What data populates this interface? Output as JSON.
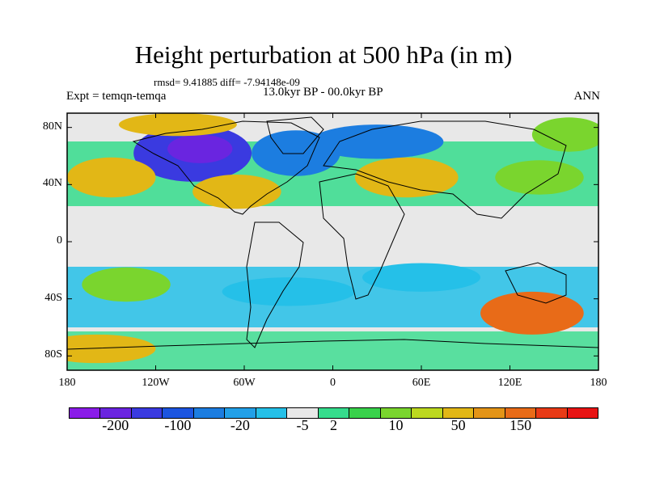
{
  "title": "Height perturbation at 500 hPa (in m)",
  "stats": "rmsd= 9.41885 diff= -7.94148e-09",
  "left_label": "Expt = temqn-temqa",
  "center_label": "13.0kyr BP - 00.0kyr BP",
  "right_label": "ANN",
  "lat_ticks": [
    "80N",
    "40N",
    "0",
    "40S",
    "80S"
  ],
  "lat_values": [
    80,
    40,
    0,
    -40,
    -80
  ],
  "lon_ticks": [
    "180",
    "120W",
    "60W",
    "0",
    "60E",
    "120E",
    "180"
  ],
  "lon_values": [
    -180,
    -120,
    -60,
    0,
    60,
    120,
    180
  ],
  "colorbar": {
    "labels": [
      "-200",
      "-100",
      "-20",
      "-5",
      "2",
      "10",
      "50",
      "150"
    ],
    "colors": [
      "#8a1ce8",
      "#6a25e0",
      "#3a3ae0",
      "#1c55e0",
      "#1c7de0",
      "#22a0e8",
      "#25c0e8",
      "#e8e8e8",
      "#35dc8c",
      "#39d24b",
      "#7ad52e",
      "#bcd81f",
      "#e2b716",
      "#e39417",
      "#e86b18",
      "#e83a16",
      "#e81414"
    ]
  },
  "map_data": {
    "projection": "cylindrical-equidistant",
    "lon_range": [
      -180,
      180
    ],
    "lat_range": [
      -90,
      90
    ],
    "field_blobs": [
      {
        "lon": -95,
        "lat": 62,
        "rx": 40,
        "ry": 20,
        "level": -100
      },
      {
        "lon": -90,
        "lat": 65,
        "rx": 22,
        "ry": 10,
        "level": -200
      },
      {
        "lon": -25,
        "lat": 62,
        "rx": 30,
        "ry": 16,
        "level": -20
      },
      {
        "lon": 30,
        "lat": 70,
        "rx": 45,
        "ry": 12,
        "level": -20
      },
      {
        "lon": -105,
        "lat": 82,
        "rx": 40,
        "ry": 8,
        "level": 50
      },
      {
        "lon": 160,
        "lat": 75,
        "rx": 25,
        "ry": 12,
        "level": 10
      },
      {
        "lon": -150,
        "lat": 45,
        "rx": 30,
        "ry": 14,
        "level": 50
      },
      {
        "lon": -65,
        "lat": 35,
        "rx": 30,
        "ry": 12,
        "level": 50
      },
      {
        "lon": 50,
        "lat": 45,
        "rx": 35,
        "ry": 14,
        "level": 50
      },
      {
        "lon": 140,
        "lat": 45,
        "rx": 30,
        "ry": 12,
        "level": 10
      },
      {
        "lon": 135,
        "lat": -50,
        "rx": 35,
        "ry": 15,
        "level": 150
      },
      {
        "lon": -140,
        "lat": -30,
        "rx": 30,
        "ry": 12,
        "level": 10
      },
      {
        "lon": -160,
        "lat": -75,
        "rx": 40,
        "ry": 10,
        "level": 50
      },
      {
        "lon": -30,
        "lat": -35,
        "rx": 45,
        "ry": 10,
        "level": -5
      },
      {
        "lon": 60,
        "lat": -25,
        "rx": 40,
        "ry": 10,
        "level": -5
      }
    ]
  }
}
